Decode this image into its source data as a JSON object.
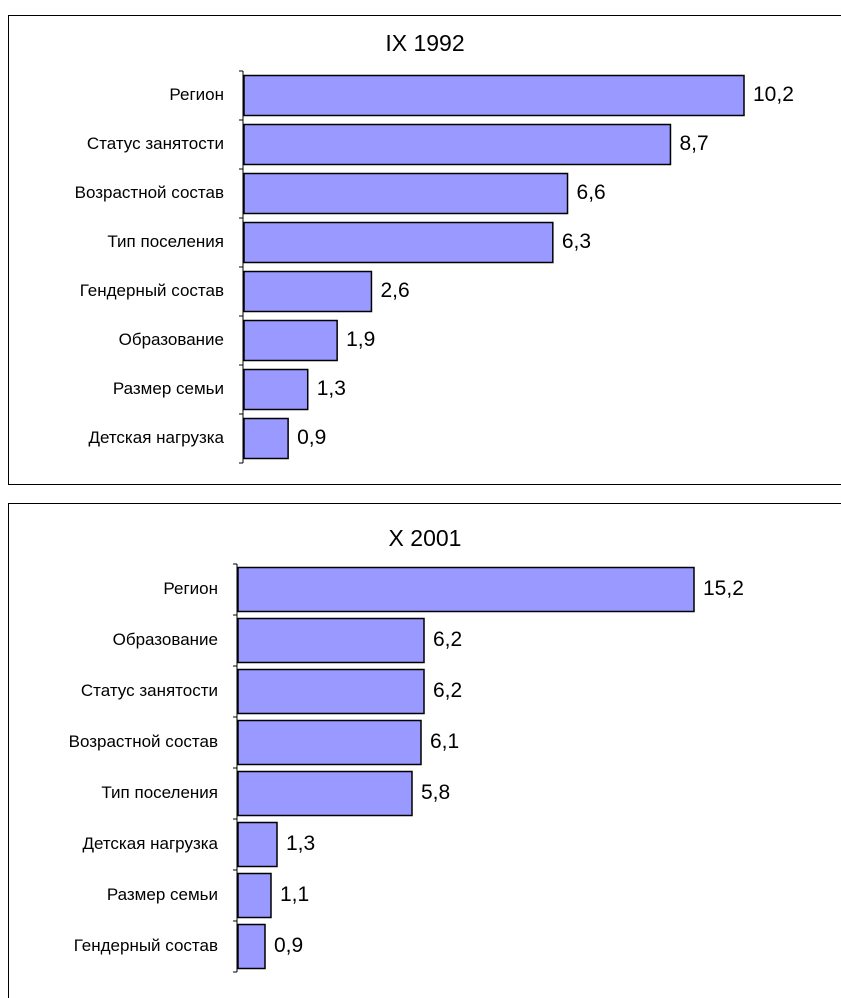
{
  "chart_data": [
    {
      "type": "bar",
      "title": "IX 1992",
      "color": "#9999ff",
      "categories": [
        "Регион",
        "Статус занятости",
        "Возрастной состав",
        "Тип поселения",
        "Гендерный состав",
        "Образование",
        "Размер семьи",
        "Детская нагрузка"
      ],
      "values": [
        10.2,
        8.7,
        6.6,
        6.3,
        2.6,
        1.9,
        1.3,
        0.9
      ],
      "value_labels": [
        "10,2",
        "8,7",
        "6,6",
        "6,3",
        "2,6",
        "1,9",
        "1,3",
        "0,9"
      ]
    },
    {
      "type": "bar",
      "title": "X 2001",
      "color": "#9999ff",
      "categories": [
        "Регион",
        "Образование",
        "Статус занятости",
        "Возрастной состав",
        "Тип поселения",
        "Детская нагрузка",
        "Размер семьи",
        "Гендерный состав"
      ],
      "values": [
        15.2,
        6.2,
        6.2,
        6.1,
        5.8,
        1.3,
        1.1,
        0.9
      ],
      "value_labels": [
        "15,2",
        "6,2",
        "6,2",
        "6,1",
        "5,8",
        "1,3",
        "1,1",
        "0,9"
      ]
    }
  ]
}
